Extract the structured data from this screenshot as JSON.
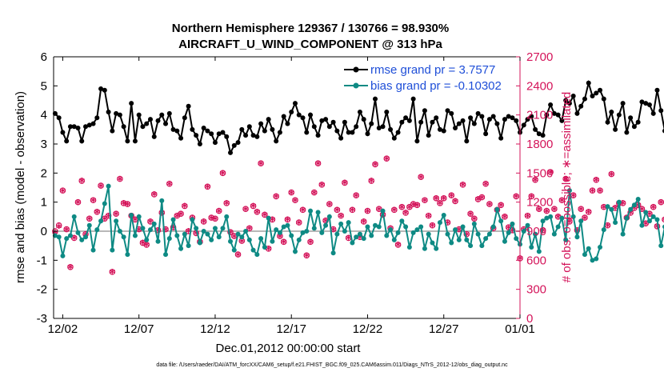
{
  "chart_data": {
    "type": "line",
    "title_line1": "Northern Hemisphere 129367 / 130766 = 98.930%",
    "title_line2": "AIRCRAFT_U_WIND_COMPONENT @ 313 hPa",
    "xlabel": "Dec.01,2012 00:00:00 start",
    "ylabel_left": "rmse and bias (model - observation)",
    "ylabel_right": "# of obs: o=possible; ∗=assimilated",
    "footnote": "data file: /Users/raeder/DAI/ATM_forcXX/CAM6_setup/f.e21.FHIST_BGC.f09_025.CAM6assim.011/Diags_NTrS_2012-12/obs_diag_output.nc",
    "x_ticks": [
      "12/02",
      "12/07",
      "12/12",
      "12/17",
      "12/22",
      "12/27",
      "01/01"
    ],
    "x_tick_days": [
      1,
      6,
      11,
      16,
      21,
      26,
      31
    ],
    "xlim": [
      0.4,
      31.0
    ],
    "ylim_left": [
      -3,
      6
    ],
    "y_ticks_left": [
      "-3",
      "-2",
      "-1",
      "0",
      "1",
      "2",
      "3",
      "4",
      "5",
      "6"
    ],
    "ylim_right": [
      0,
      2700
    ],
    "y_ticks_right": [
      "0",
      "300",
      "600",
      "900",
      "1200",
      "1500",
      "1800",
      "2100",
      "2400",
      "2700"
    ],
    "grid": false,
    "zero_line": true,
    "legend_position": "top-right",
    "colors": {
      "rmse": "#000000",
      "bias": "#0e8a84",
      "obs": "#d4145a",
      "right_axis": "#d4145a",
      "legend_text": "#1f4fd8",
      "zero": "#b8b8b8"
    },
    "series": [
      {
        "name": "rmse grand pr = 3.7577",
        "axis": "left",
        "x_start_day": 0.5,
        "x_step_days": 0.25,
        "values": [
          4.05,
          3.9,
          3.4,
          3.1,
          3.6,
          3.6,
          3.55,
          3.1,
          3.6,
          3.65,
          3.7,
          3.9,
          4.9,
          4.85,
          4.1,
          3.45,
          4.05,
          4.0,
          3.6,
          3.1,
          4.4,
          3.1,
          4.0,
          3.6,
          3.7,
          3.85,
          3.25,
          3.8,
          4.0,
          3.7,
          4.05,
          3.5,
          3.45,
          3.2,
          3.9,
          4.3,
          3.5,
          3.3,
          3.0,
          3.55,
          3.45,
          3.35,
          3.05,
          3.35,
          3.4,
          3.25,
          2.7,
          2.95,
          3.05,
          3.5,
          3.3,
          3.6,
          3.3,
          3.25,
          3.7,
          3.45,
          3.85,
          3.5,
          3.1,
          3.4,
          3.95,
          3.7,
          4.1,
          4.4,
          4.0,
          3.9,
          3.4,
          4.0,
          3.6,
          3.3,
          3.8,
          3.85,
          3.6,
          3.75,
          3.45,
          3.2,
          3.75,
          3.4,
          3.4,
          3.6,
          4.1,
          3.85,
          3.35,
          3.7,
          4.55,
          3.55,
          3.6,
          4.1,
          3.5,
          3.2,
          3.4,
          3.75,
          3.9,
          3.8,
          4.55,
          3.1,
          3.75,
          4.15,
          3.3,
          3.75,
          3.9,
          3.5,
          3.45,
          4.15,
          4.05,
          3.55,
          3.7,
          3.8,
          3.1,
          3.9,
          3.7,
          4.05,
          3.95,
          3.35,
          3.85,
          3.95,
          3.7,
          3.2,
          3.85,
          3.95,
          3.9,
          3.8,
          3.4,
          3.65,
          3.85,
          3.95,
          3.5,
          3.35,
          3.3,
          4.0,
          4.35,
          4.05,
          4.0,
          3.8,
          4.5,
          4.4,
          4.65,
          4.05,
          4.3,
          4.55,
          5.1,
          4.65,
          4.75,
          4.85,
          4.55,
          3.75,
          4.1,
          3.5,
          4.0,
          4.4,
          3.4,
          3.9,
          3.6,
          3.75,
          4.45,
          4.4,
          4.35,
          4.05,
          4.85,
          4.15,
          3.45,
          3.45,
          3.5
        ]
      },
      {
        "name": "bias grand pr = -0.10302",
        "axis": "left",
        "x_start_day": 0.5,
        "x_step_days": 0.25,
        "values": [
          -0.15,
          -0.2,
          -0.85,
          -0.25,
          -0.15,
          0.5,
          -0.05,
          -0.3,
          -0.2,
          0.2,
          -0.65,
          0.05,
          0.35,
          0.95,
          1.55,
          -0.65,
          0.35,
          0.0,
          -0.2,
          -0.8,
          0.55,
          -0.15,
          0.5,
          0.1,
          -0.3,
          0.05,
          0.25,
          -0.35,
          1.05,
          -0.8,
          -0.25,
          0.4,
          -0.15,
          -0.6,
          -0.1,
          -0.5,
          0.4,
          0.1,
          -0.4,
          0.0,
          -0.1,
          -0.3,
          0.1,
          -0.2,
          0.1,
          0.5,
          -0.35,
          -0.65,
          -0.1,
          -0.2,
          0.0,
          -0.3,
          -0.65,
          -0.8,
          -0.25,
          -0.55,
          0.45,
          -0.35,
          0.05,
          -0.05,
          0.15,
          0.2,
          -0.15,
          -0.7,
          -0.3,
          -0.05,
          0.0,
          0.7,
          0.1,
          0.65,
          -0.05,
          0.2,
          0.5,
          -0.75,
          -0.1,
          0.25,
          0.0,
          0.3,
          -0.4,
          -0.2,
          -0.1,
          -0.25,
          0.15,
          -0.15,
          0.2,
          0.15,
          0.7,
          -0.15,
          0.05,
          -0.3,
          -0.05,
          0.35,
          0.15,
          -0.55,
          -0.05,
          0.05,
          0.15,
          -0.6,
          -0.1,
          -0.4,
          -0.6,
          0.3,
          0.55,
          -0.1,
          -0.4,
          0.05,
          -0.3,
          0.15,
          -0.3,
          -0.5,
          0.25,
          -0.1,
          -0.5,
          -0.25,
          -0.1,
          0.15,
          0.75,
          0.35,
          -0.35,
          -0.05,
          0.25,
          -0.25,
          -0.45,
          0.0,
          0.2,
          -0.55,
          -0.1,
          -0.7,
          0.35,
          0.45,
          0.5,
          -0.1,
          0.15,
          0.45,
          -0.3,
          1.4,
          0.5,
          -0.2,
          0.35,
          -0.8,
          -0.6,
          -1.0,
          -0.95,
          -0.55,
          0.05,
          0.85,
          0.75,
          0.3,
          1.0,
          -0.1,
          0.45,
          0.75,
          0.9,
          1.1,
          0.2,
          0.65,
          0.35,
          0.5,
          0.4,
          -0.5,
          0.15,
          -0.75,
          0.0,
          0.35,
          0.05,
          0.55
        ]
      },
      {
        "name": "obs possible",
        "axis": "right",
        "marker": "o",
        "x_start_day": 0.5,
        "x_step_days": 0.25,
        "values": [
          900,
          960,
          1320,
          920,
          530,
          830,
          1200,
          1420,
          870,
          1030,
          1220,
          1100,
          1370,
          1030,
          1060,
          480,
          1080,
          1440,
          1190,
          1180,
          1060,
          1020,
          920,
          780,
          760,
          1000,
          1280,
          910,
          1090,
          920,
          1390,
          940,
          1060,
          1080,
          1160,
          900,
          1040,
          880,
          790,
          1000,
          1360,
          1040,
          1030,
          1110,
          1500,
          1190,
          890,
          850,
          660,
          800,
          1130,
          930,
          1160,
          1100,
          1600,
          1070,
          720,
          1020,
          1260,
          850,
          790,
          1020,
          1300,
          1220,
          990,
          1120,
          650,
          790,
          1300,
          1600,
          1380,
          1010,
          1180,
          920,
          1120,
          1060,
          1400,
          830,
          1120,
          1270,
          840,
          1000,
          1110,
          1420,
          1590,
          1130,
          1070,
          1650,
          930,
          1120,
          760,
          1150,
          1090,
          1150,
          1180,
          1170,
          1460,
          1220,
          1060,
          960,
          1240,
          1190,
          1240,
          990,
          1270,
          1210,
          920,
          1380,
          870,
          1080,
          1030,
          1230,
          1250,
          1390,
          1180,
          930,
          1120,
          1170,
          1050,
          940,
          910,
          1260,
          620,
          920,
          1060,
          1260,
          1430,
          1130,
          910,
          1110,
          1510,
          1130,
          1050,
          1220,
          1440,
          1000,
          1270,
          910,
          1130,
          1040,
          1100,
          1320,
          1430,
          1320,
          1150,
          960,
          1490,
          1140,
          1190,
          1190,
          1040,
          1090,
          1140,
          1170,
          1130,
          980,
          1080,
          1150,
          950,
          1200,
          1020,
          880,
          750
        ]
      },
      {
        "name": "obs assimilated",
        "axis": "right",
        "marker": "*",
        "x_start_day": 0.5,
        "x_step_days": 0.25,
        "values": [
          880,
          940,
          1310,
          910,
          520,
          820,
          1190,
          1410,
          860,
          1020,
          1210,
          1090,
          1360,
          1020,
          1050,
          470,
          1070,
          1430,
          1180,
          1170,
          1050,
          1010,
          910,
          770,
          750,
          990,
          1270,
          900,
          1080,
          910,
          1380,
          930,
          1050,
          1070,
          1150,
          890,
          1030,
          870,
          780,
          990,
          1350,
          1030,
          1020,
          1100,
          1490,
          1180,
          880,
          840,
          650,
          790,
          1120,
          920,
          1150,
          1090,
          1590,
          1060,
          710,
          1010,
          1250,
          840,
          780,
          1010,
          1290,
          1210,
          980,
          1110,
          640,
          780,
          1290,
          1590,
          1370,
          1000,
          1170,
          910,
          1110,
          1050,
          1390,
          820,
          1110,
          1260,
          830,
          990,
          1100,
          1410,
          1580,
          1120,
          1060,
          1640,
          920,
          1110,
          750,
          1140,
          1080,
          1140,
          1170,
          1160,
          1450,
          1210,
          1050,
          950,
          1230,
          1180,
          1230,
          980,
          1260,
          1200,
          910,
          1370,
          860,
          1070,
          1020,
          1220,
          1240,
          1380,
          1170,
          920,
          1110,
          1160,
          1040,
          930,
          900,
          1250,
          610,
          910,
          1050,
          1250,
          1420,
          1120,
          900,
          1100,
          1500,
          1120,
          1040,
          1210,
          1430,
          990,
          1260,
          900,
          1120,
          1030,
          1090,
          1310,
          1420,
          1310,
          1140,
          950,
          1480,
          1130,
          1180,
          1180,
          1030,
          1080,
          1130,
          1160,
          1120,
          970,
          1070,
          1140,
          940,
          1190,
          1010,
          870,
          0
        ]
      }
    ]
  }
}
